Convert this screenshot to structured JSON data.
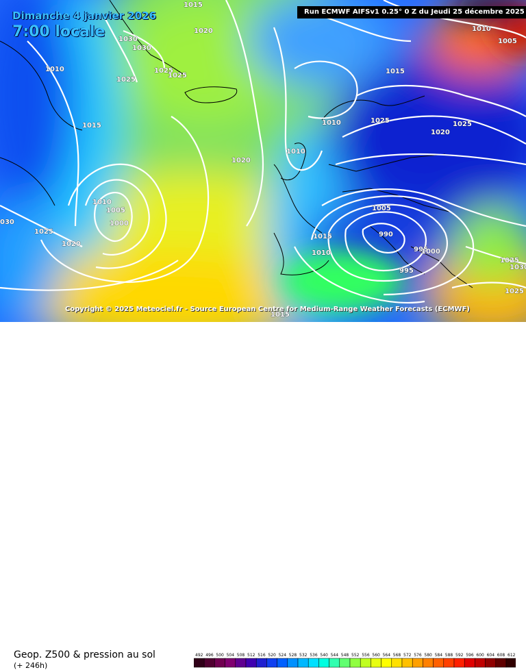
{
  "map": {
    "date_label": "Dimanche 4 janvier 2026",
    "time_label": "7:00 locale",
    "run_banner": "Run ECMWF AIFSv1 0.25° 0 Z du Jeudi 25 décembre 2025",
    "copyright": "Copyright © 2025 Meteociel.fr - Source European Centre for Medium-Range Weather Forecasts (ECMWF)",
    "product": "Geop. Z500 & pression au sol",
    "lead_time": "(+ 246h)"
  },
  "isobar_labels": [
    {
      "text": "1015",
      "pos": "north-center"
    },
    {
      "text": "1020",
      "pos": "greenland-east"
    },
    {
      "text": "1030",
      "pos": "greenland-south"
    },
    {
      "text": "1030",
      "pos": "greenland-south-2"
    },
    {
      "text": "1025",
      "pos": "iceland-west"
    },
    {
      "text": "1025",
      "pos": "iceland"
    },
    {
      "text": "1010",
      "pos": "greenland-west"
    },
    {
      "text": "1025",
      "pos": "labrador-sea"
    },
    {
      "text": "1015",
      "pos": "labrador"
    },
    {
      "text": "1010",
      "pos": "newfoundland"
    },
    {
      "text": "1005",
      "pos": "newfoundland-2"
    },
    {
      "text": "1000",
      "pos": "newfoundland-low"
    },
    {
      "text": "1025",
      "pos": "atlantic-west"
    },
    {
      "text": "1020",
      "pos": "atlantic-sw"
    },
    {
      "text": "030",
      "pos": "west-edge"
    },
    {
      "text": "1020",
      "pos": "mid-atlantic"
    },
    {
      "text": "1010",
      "pos": "british-isles-north"
    },
    {
      "text": "1010",
      "pos": "british-isles"
    },
    {
      "text": "1015",
      "pos": "norway"
    },
    {
      "text": "1025",
      "pos": "scandinavia"
    },
    {
      "text": "1020",
      "pos": "finland"
    },
    {
      "text": "1025",
      "pos": "russia-north"
    },
    {
      "text": "1010",
      "pos": "arctic-east"
    },
    {
      "text": "1005",
      "pos": "arctic-east-2"
    },
    {
      "text": "1005",
      "pos": "central-europe"
    },
    {
      "text": "1015",
      "pos": "biscay"
    },
    {
      "text": "1010",
      "pos": "iberia-north"
    },
    {
      "text": "990",
      "pos": "italy-low"
    },
    {
      "text": "995",
      "pos": "adriatic"
    },
    {
      "text": "1000",
      "pos": "balkans"
    },
    {
      "text": "995",
      "pos": "mediterranean"
    },
    {
      "text": "1025",
      "pos": "turkey"
    },
    {
      "text": "1030",
      "pos": "east-edge"
    },
    {
      "text": "1025",
      "pos": "middle-east"
    },
    {
      "text": "1015",
      "pos": "sahara"
    }
  ],
  "scale": {
    "ticks": [
      "492",
      "496",
      "500",
      "504",
      "508",
      "512",
      "516",
      "520",
      "524",
      "528",
      "532",
      "536",
      "540",
      "544",
      "548",
      "552",
      "556",
      "560",
      "564",
      "568",
      "572",
      "576",
      "580",
      "584",
      "588",
      "592",
      "596",
      "600",
      "604",
      "608",
      "612"
    ],
    "colors": [
      "#300018",
      "#500030",
      "#700050",
      "#800070",
      "#600090",
      "#4000b0",
      "#2020d0",
      "#1040f0",
      "#0060ff",
      "#0090ff",
      "#00b8ff",
      "#00e0ff",
      "#00ffe0",
      "#30ffb0",
      "#60ff70",
      "#90ff40",
      "#c0ff20",
      "#e8ff10",
      "#ffff00",
      "#ffe000",
      "#ffc000",
      "#ffa000",
      "#ff8000",
      "#ff6000",
      "#ff4000",
      "#ff2000",
      "#e00000",
      "#c00000",
      "#900000",
      "#600000",
      "#300000"
    ]
  }
}
